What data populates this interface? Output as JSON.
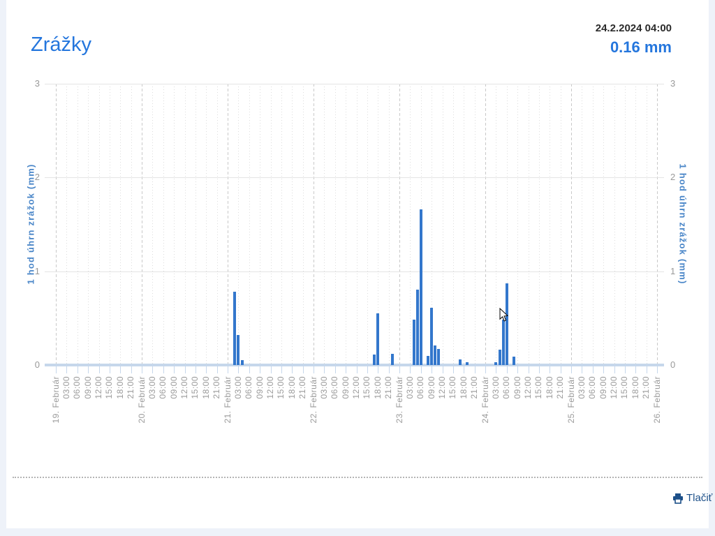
{
  "header": {
    "title": "Zrážky",
    "timestamp": "24.2.2024 04:00",
    "current_value": "0.16 mm"
  },
  "chart_data": {
    "type": "bar",
    "title": "Zrážky",
    "ylabel": "1 hod úhrn zrážok (mm)",
    "unit": "mm",
    "ylim": [
      0,
      3
    ],
    "yticks": [
      0,
      1,
      2,
      3
    ],
    "grid": "on",
    "x_axis_start": "19. Február",
    "x_axis_end": "26. Február",
    "x_tick_interval_hours": 3,
    "x_tick_labels": [
      "19. Február",
      "03:00",
      "06:00",
      "09:00",
      "12:00",
      "15:00",
      "18:00",
      "21:00",
      "20. Február",
      "03:00",
      "06:00",
      "09:00",
      "12:00",
      "15:00",
      "18:00",
      "21:00",
      "21. Február",
      "03:00",
      "06:00",
      "09:00",
      "12:00",
      "15:00",
      "18:00",
      "21:00",
      "22. Február",
      "03:00",
      "06:00",
      "09:00",
      "12:00",
      "15:00",
      "18:00",
      "21:00",
      "23. Február",
      "03:00",
      "06:00",
      "09:00",
      "12:00",
      "15:00",
      "18:00",
      "21:00",
      "24. Február",
      "03:00",
      "06:00",
      "09:00",
      "12:00",
      "15:00",
      "18:00",
      "21:00",
      "25. Február",
      "03:00",
      "06:00",
      "09:00",
      "12:00",
      "15:00",
      "18:00",
      "21:00",
      "26. Február"
    ],
    "series": [
      {
        "name": "1 hod úhrn zrážok",
        "points": [
          {
            "date": "21.2.2024",
            "time": "02:00",
            "value": 0.78
          },
          {
            "date": "21.2.2024",
            "time": "03:00",
            "value": 0.32
          },
          {
            "date": "21.2.2024",
            "time": "04:00",
            "value": 0.05
          },
          {
            "date": "22.2.2024",
            "time": "17:00",
            "value": 0.11
          },
          {
            "date": "22.2.2024",
            "time": "18:00",
            "value": 0.55
          },
          {
            "date": "22.2.2024",
            "time": "22:00",
            "value": 0.12
          },
          {
            "date": "23.2.2024",
            "time": "04:00",
            "value": 0.48
          },
          {
            "date": "23.2.2024",
            "time": "05:00",
            "value": 0.8
          },
          {
            "date": "23.2.2024",
            "time": "06:00",
            "value": 1.66
          },
          {
            "date": "23.2.2024",
            "time": "08:00",
            "value": 0.1
          },
          {
            "date": "23.2.2024",
            "time": "09:00",
            "value": 0.61
          },
          {
            "date": "23.2.2024",
            "time": "10:00",
            "value": 0.21
          },
          {
            "date": "23.2.2024",
            "time": "11:00",
            "value": 0.17
          },
          {
            "date": "23.2.2024",
            "time": "17:00",
            "value": 0.06
          },
          {
            "date": "23.2.2024",
            "time": "19:00",
            "value": 0.03
          },
          {
            "date": "24.2.2024",
            "time": "03:00",
            "value": 0.03
          },
          {
            "date": "24.2.2024",
            "time": "04:00",
            "value": 0.16
          },
          {
            "date": "24.2.2024",
            "time": "05:00",
            "value": 0.48
          },
          {
            "date": "24.2.2024",
            "time": "06:00",
            "value": 0.87
          },
          {
            "date": "24.2.2024",
            "time": "08:00",
            "value": 0.09
          }
        ]
      }
    ]
  },
  "footer": {
    "print_label": "Tlačiť"
  },
  "colors": {
    "title_blue": "#2476dd",
    "bar_blue": "#3377cc",
    "axis_title_blue": "#4a86c8",
    "print_blue": "#1d5089",
    "baseline_blue": "#c6d7eb",
    "tick_text_gray": "#9a9a9a",
    "page_background": "#eef2f9"
  }
}
